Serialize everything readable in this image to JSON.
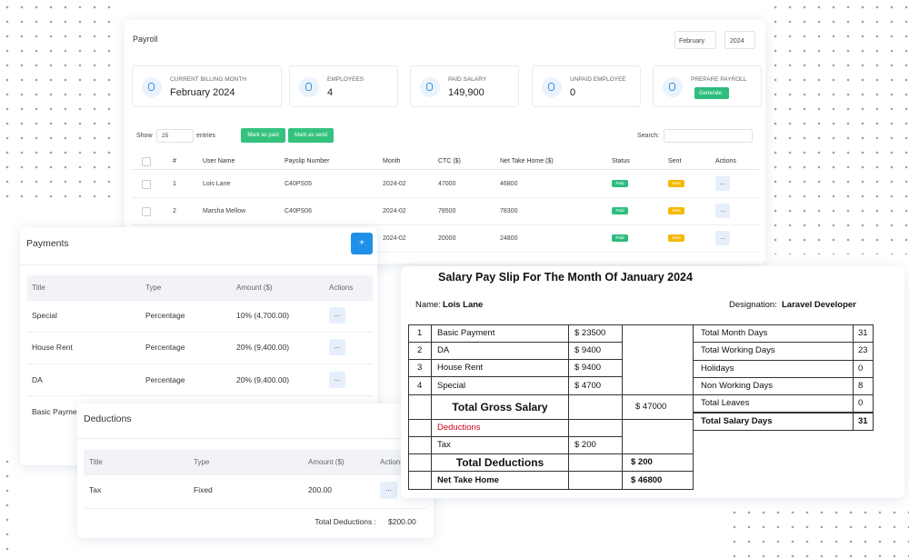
{
  "payroll": {
    "title": "Payroll",
    "month_select": "February",
    "year_select": "2024",
    "stats": [
      {
        "label": "CURRENT BILLING MONTH",
        "value": "February 2024"
      },
      {
        "label": "EMPLOYEES",
        "value": "4"
      },
      {
        "label": "PAID SALARY",
        "value": "149,900"
      },
      {
        "label": "UNPAID EMPLOYEE",
        "value": "0"
      },
      {
        "label": "PREPARE PAYROLL",
        "button": "Generate"
      }
    ],
    "show_label": "Show",
    "page_size": "25",
    "entries_label": "entries",
    "buttons": [
      "Mark as paid",
      "Mark as send"
    ],
    "search_label": "Search:",
    "table": {
      "columns": [
        "#",
        "User Name",
        "Payslip Number",
        "Month",
        "CTC ($)",
        "Net Take Home ($)",
        "Status",
        "Sent",
        "Actions"
      ],
      "rows": [
        [
          "1",
          "Lois Lane",
          "C40PS05",
          "2024-02",
          "47000",
          "46800",
          "Paid",
          "Sent",
          "..."
        ],
        [
          "2",
          "Marsha Mellow",
          "C40PS06",
          "2024-02",
          "78500",
          "78300",
          "Paid",
          "Sent",
          "..."
        ],
        [
          null,
          null,
          null,
          "2024-02",
          "20000",
          "24800",
          "Paid",
          "Sent",
          "..."
        ]
      ]
    }
  },
  "payments": {
    "title": "Payments",
    "add_button": "+",
    "columns": [
      "Title",
      "Type",
      "Amount ($)",
      "Actions"
    ],
    "rows": [
      [
        "Special",
        "Percentage",
        "10% (4,700.00)",
        "..."
      ],
      [
        "House Rent",
        "Percentage",
        "20% (9,400.00)",
        "..."
      ],
      [
        "DA",
        "Percentage",
        "20% (9,400.00)",
        "..."
      ],
      [
        "Basic Payment",
        null,
        null,
        null
      ]
    ]
  },
  "deductions": {
    "title": "Deductions",
    "add_button": "+",
    "columns": [
      "Title",
      "Type",
      "Amount ($)",
      "Actions"
    ],
    "rows": [
      [
        "Tax",
        "Fixed",
        "200.00",
        "..."
      ]
    ],
    "total_label": "Total Deductions :",
    "total": "$200.00"
  },
  "payslip": {
    "title": "Salary Pay Slip For The Month Of January 2024",
    "name_label": "Name:",
    "name": "Lois Lane",
    "designation_label": "Designation:",
    "designation": "Laravel Developer",
    "earnings": [
      [
        "1",
        "Basic Payment",
        "$ 23500"
      ],
      [
        "2",
        "DA",
        "$ 9400"
      ],
      [
        "3",
        "House Rent",
        "$ 9400"
      ],
      [
        "4",
        "Special",
        "$ 4700"
      ]
    ],
    "gross_label": "Total Gross Salary",
    "gross": "$ 47000",
    "deductions_label": "Deductions",
    "deductions": [
      [
        "Tax",
        "$ 200"
      ]
    ],
    "total_deductions_label": "Total Deductions",
    "total_deductions": "$ 200",
    "net_label": "Net Take Home",
    "net": "$ 46800",
    "attendance": [
      [
        "Total Month Days",
        "31"
      ],
      [
        "Total Working Days",
        "23"
      ],
      [
        "Holidays",
        "0"
      ],
      [
        "Non Working Days",
        "8"
      ],
      [
        "Total Leaves",
        "0"
      ],
      [
        "Total Salary Days",
        "31"
      ]
    ]
  }
}
